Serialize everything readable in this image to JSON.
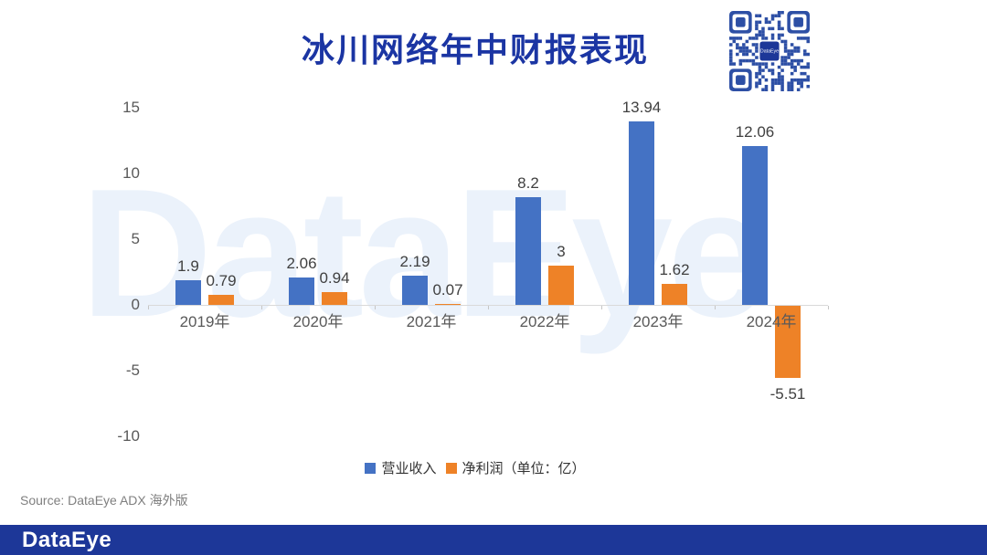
{
  "title": "冰川网络年中财报表现",
  "watermark": {
    "text": "DataEye"
  },
  "source": "Source: DataEye ADX 海外版",
  "footer": {
    "logo": "DataEye"
  },
  "qr": {
    "name": "dataeye-qr-code"
  },
  "colors": {
    "title": "#1B35A3",
    "watermark": "#EBF2FB",
    "footer_bar": "#1D3798",
    "qr_module": "#2D4FA5",
    "qr_center": "#1D3798",
    "revenue_blue": "#4472C4",
    "profit_orange": "#EE8227",
    "axis_line": "#D9D9D9",
    "axis_text": "#595959",
    "data_label": "#404040"
  },
  "legend": {
    "items": [
      {
        "label": "营业收入"
      },
      {
        "label": "净利润（单位：亿）"
      }
    ]
  },
  "chart_data": {
    "type": "bar",
    "title": "冰川网络年中财报表现",
    "categories": [
      "2019年",
      "2020年",
      "2021年",
      "2022年",
      "2023年",
      "2024年"
    ],
    "series": [
      {
        "name": "营业收入",
        "color": "#4472C4",
        "values": [
          1.9,
          2.06,
          2.19,
          8.2,
          13.94,
          12.06
        ],
        "labels": [
          "1.9",
          "2.06",
          "2.19",
          "8.2",
          "13.94",
          "12.06"
        ]
      },
      {
        "name": "净利润",
        "color": "#EE8227",
        "values": [
          0.79,
          0.94,
          0.07,
          3,
          1.62,
          -5.51
        ],
        "labels": [
          "0.79",
          "0.94",
          "0.07",
          "3",
          "1.62",
          "-5.51"
        ]
      }
    ],
    "unit": "亿",
    "ylim": [
      -10,
      15
    ],
    "yticks": [
      -10,
      -5,
      0,
      5,
      10,
      15
    ],
    "grid": false,
    "legend_position": "bottom"
  }
}
